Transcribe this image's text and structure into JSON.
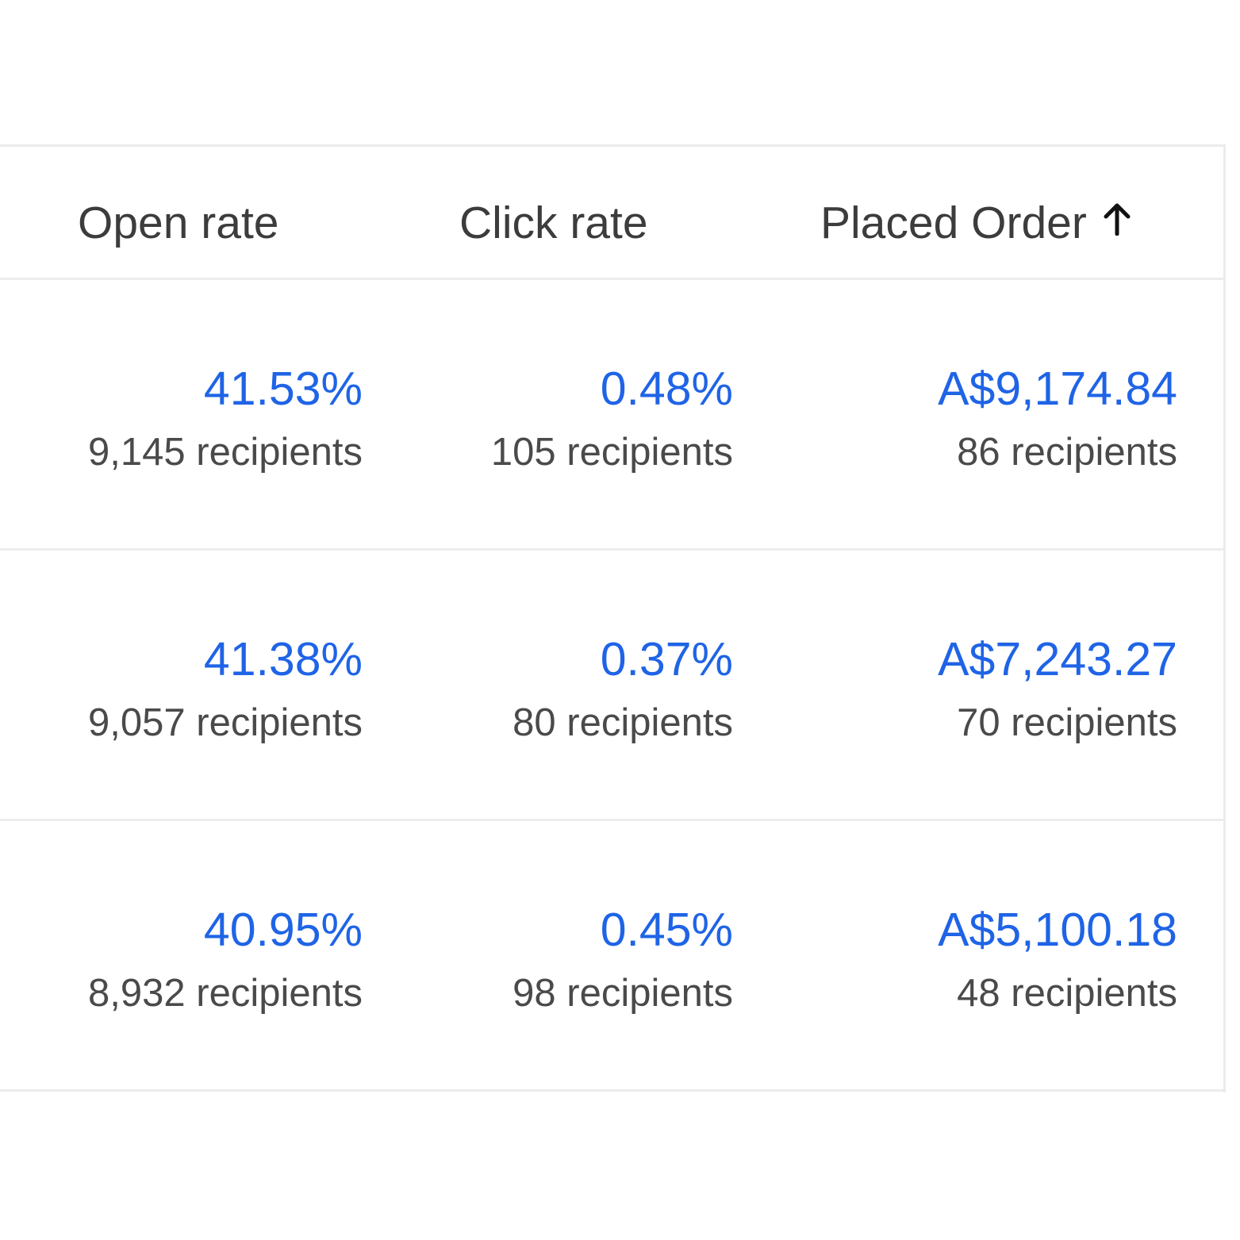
{
  "table": {
    "columns": [
      {
        "label": "Open rate"
      },
      {
        "label": "Click rate"
      },
      {
        "label": "Placed Order",
        "sort_icon": "arrow-up-icon"
      }
    ],
    "rows": [
      {
        "open_rate": "41.53%",
        "open_recipients": "9,145 recipients",
        "click_rate": "0.48%",
        "click_recipients": "105 recipients",
        "placed_order": "A$9,174.84",
        "order_recipients": "86 recipients"
      },
      {
        "open_rate": "41.38%",
        "open_recipients": "9,057 recipients",
        "click_rate": "0.37%",
        "click_recipients": "80 recipients",
        "placed_order": "A$7,243.27",
        "order_recipients": "70 recipients"
      },
      {
        "open_rate": "40.95%",
        "open_recipients": "8,932 recipients",
        "click_rate": "0.45%",
        "click_recipients": "98 recipients",
        "placed_order": "A$5,100.18",
        "order_recipients": "48 recipients"
      }
    ]
  },
  "colors": {
    "link_value": "#1f64e6",
    "header_text": "#3c3c3c",
    "sub_text": "#4a4a4a",
    "divider": "#ececec"
  }
}
